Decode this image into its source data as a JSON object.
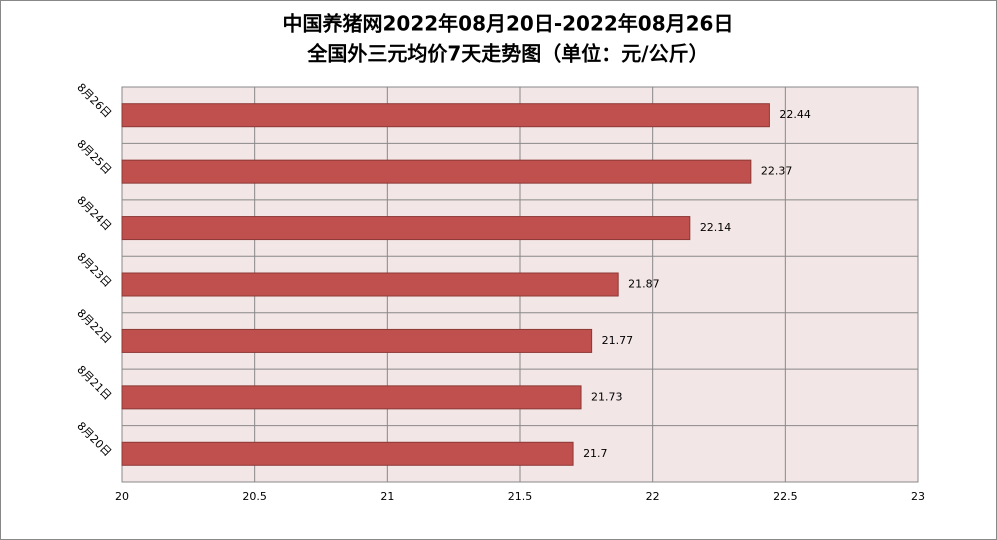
{
  "chart_data": {
    "type": "bar",
    "orientation": "horizontal",
    "title": "中国养猪网2022年08月20日-2022年08月26日",
    "subtitle": "全国外三元均价7天走势图（单位：元/公斤）",
    "categories": [
      "8月20日",
      "8月21日",
      "8月22日",
      "8月23日",
      "8月24日",
      "8月25日",
      "8月26日"
    ],
    "values": [
      21.7,
      21.73,
      21.77,
      21.87,
      22.14,
      22.37,
      22.44
    ],
    "color": "#c0504d",
    "xlim": [
      20,
      23
    ],
    "xticks": [
      20,
      20.5,
      21,
      21.5,
      22,
      22.5,
      23
    ],
    "grid": true
  }
}
